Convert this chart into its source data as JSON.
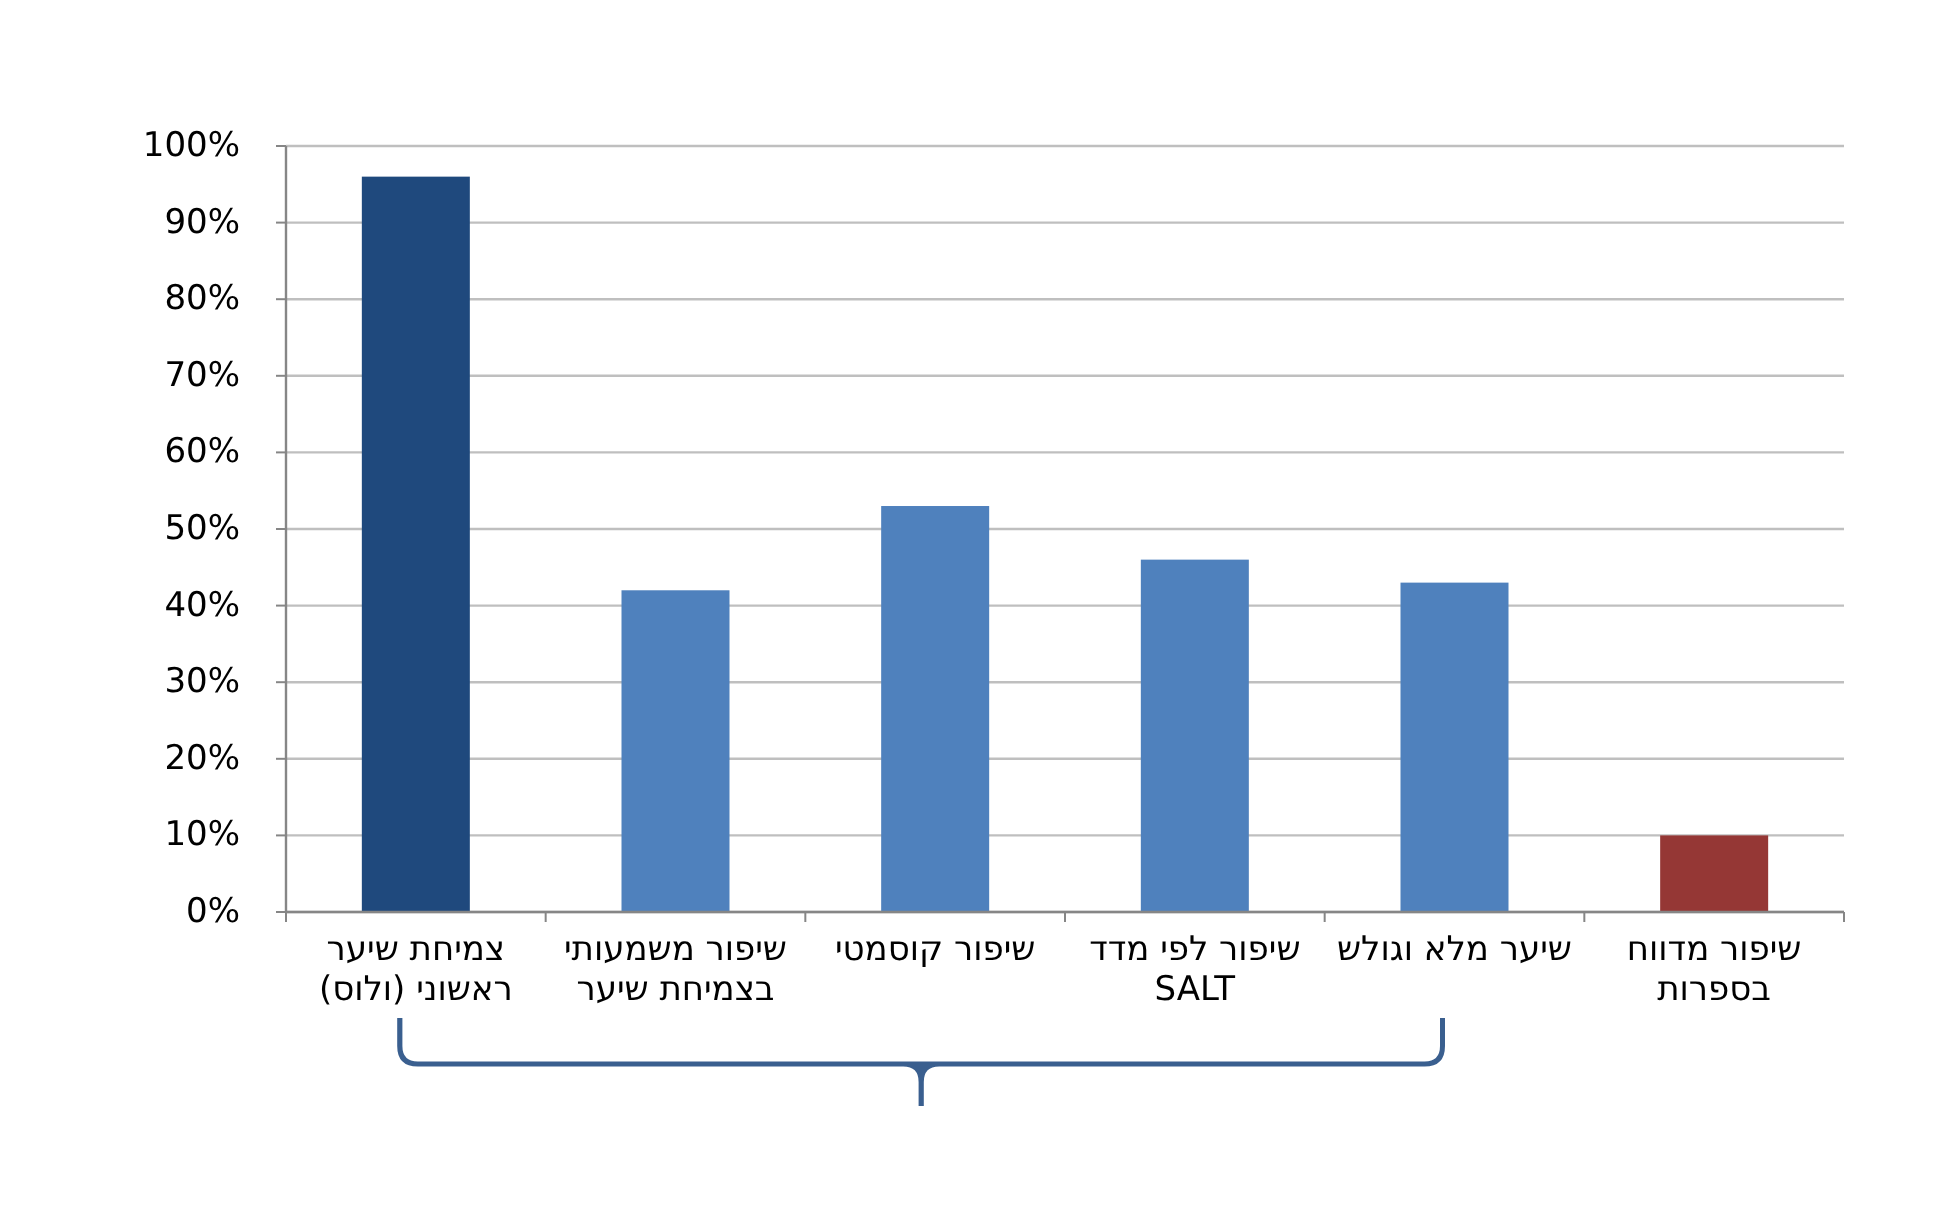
{
  "chart_data": {
    "type": "bar",
    "categories": [
      "צמיחת שיער ראשוני (ולוס)",
      "שיפור משמעותי בצמיחת שיער",
      "שיפור קוסמטי",
      "שיפור לפי מדד SALT",
      "שיער מלא וגולש",
      "שיפור מדווח בספרות"
    ],
    "values": [
      96,
      42,
      53,
      46,
      43,
      10
    ],
    "colors": [
      "#1f497d",
      "#4f81bd",
      "#4f81bd",
      "#4f81bd",
      "#4f81bd",
      "#953735"
    ],
    "ylim": [
      0,
      100
    ],
    "yticks": [
      {
        "value": 0,
        "label": "0%"
      },
      {
        "value": 10,
        "label": "10%"
      },
      {
        "value": 20,
        "label": "20%"
      },
      {
        "value": 30,
        "label": "30%"
      },
      {
        "value": 40,
        "label": "40%"
      },
      {
        "value": 50,
        "label": "50%"
      },
      {
        "value": 60,
        "label": "60%"
      },
      {
        "value": 70,
        "label": "70%"
      },
      {
        "value": 80,
        "label": "80%"
      },
      {
        "value": 90,
        "label": "90%"
      },
      {
        "value": 100,
        "label": "100%"
      }
    ],
    "grid": "y"
  }
}
